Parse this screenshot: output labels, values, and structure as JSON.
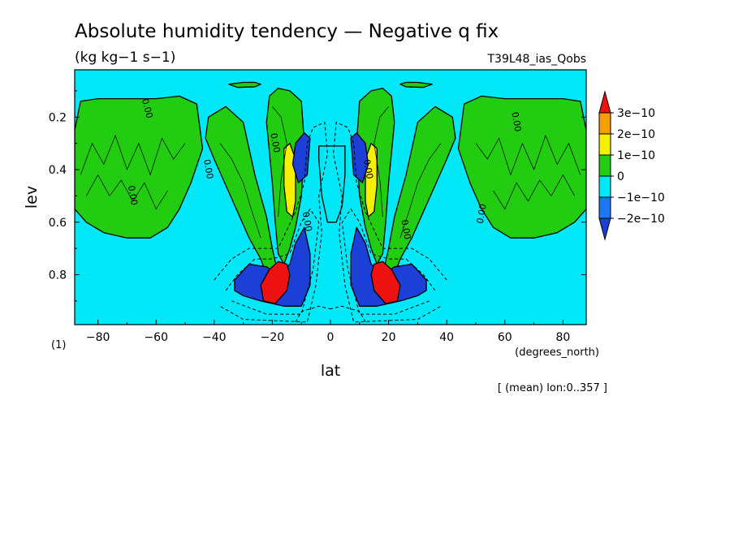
{
  "chart_data": {
    "type": "heatmap",
    "title": "Absolute humidity tendency — Negative q fix",
    "units": "(kg kg−1 s−1)",
    "run_label": "T39L48_ias_Qobs",
    "xlabel": "lat",
    "x_units": "(degrees_north)",
    "ylabel": "lev",
    "y_units": "(1)",
    "annotation": "[ (mean) lon:0..357 ]",
    "xlim": [
      -88,
      88
    ],
    "ylim": [
      0.99,
      0.02
    ],
    "x_ticks": [
      -80,
      -60,
      -40,
      -20,
      0,
      20,
      40,
      60,
      80
    ],
    "x_tick_labels": [
      "−80",
      "−60",
      "−40",
      "−20",
      "0",
      "20",
      "40",
      "60",
      "80"
    ],
    "y_ticks": [
      0.2,
      0.4,
      0.6,
      0.8
    ],
    "y_tick_labels": [
      "0.2",
      "0.4",
      "0.6",
      "0.8"
    ],
    "contour_label": "0.00",
    "colorbar": {
      "labels": [
        "3e−10",
        "2e−10",
        "1e−10",
        "0",
        "−1e−10",
        "−2e−10"
      ],
      "colors": [
        "#ee1111",
        "#f5a000",
        "#f5f000",
        "#22cc11",
        "#00e8f8",
        "#1c78f0",
        "#1c3fd8"
      ]
    },
    "regions": {
      "green": [
        {
          "hemisphere": "both",
          "points": [
            [
              -88,
              0.25
            ],
            [
              -86,
              0.14
            ],
            [
              -80,
              0.13
            ],
            [
              -70,
              0.13
            ],
            [
              -60,
              0.13
            ],
            [
              -52,
              0.12
            ],
            [
              -46,
              0.15
            ],
            [
              -44,
              0.32
            ],
            [
              -48,
              0.45
            ],
            [
              -52,
              0.55
            ],
            [
              -56,
              0.62
            ],
            [
              -62,
              0.66
            ],
            [
              -70,
              0.66
            ],
            [
              -78,
              0.64
            ],
            [
              -84,
              0.6
            ],
            [
              -88,
              0.55
            ]
          ]
        },
        {
          "hemisphere": "both",
          "points": [
            [
              -42,
              0.2
            ],
            [
              -36,
              0.16
            ],
            [
              -30,
              0.22
            ],
            [
              -26,
              0.42
            ],
            [
              -22,
              0.58
            ],
            [
              -20,
              0.7
            ],
            [
              -18,
              0.8
            ],
            [
              -22,
              0.8
            ],
            [
              -24,
              0.74
            ],
            [
              -28,
              0.66
            ],
            [
              -32,
              0.56
            ],
            [
              -36,
              0.46
            ],
            [
              -40,
              0.36
            ],
            [
              -43,
              0.28
            ]
          ]
        },
        {
          "hemisphere": "both",
          "points": [
            [
              -22,
              0.22
            ],
            [
              -21,
              0.12
            ],
            [
              -18,
              0.09
            ],
            [
              -14,
              0.1
            ],
            [
              -10,
              0.14
            ],
            [
              -9,
              0.3
            ],
            [
              -10,
              0.5
            ],
            [
              -12,
              0.62
            ],
            [
              -14,
              0.7
            ],
            [
              -16,
              0.76
            ],
            [
              -18,
              0.72
            ],
            [
              -19,
              0.6
            ],
            [
              -20,
              0.45
            ]
          ]
        },
        {
          "hemisphere": "both",
          "points": [
            [
              -35,
              0.075
            ],
            [
              -30,
              0.068
            ],
            [
              -26,
              0.068
            ],
            [
              -24,
              0.075
            ],
            [
              -26,
              0.085
            ],
            [
              -32,
              0.087
            ]
          ]
        }
      ],
      "yellow": [
        {
          "hemisphere": "both",
          "points": [
            [
              -16,
              0.32
            ],
            [
              -14,
              0.3
            ],
            [
              -12,
              0.36
            ],
            [
              -12,
              0.52
            ],
            [
              -13,
              0.58
            ],
            [
              -15,
              0.56
            ],
            [
              -16,
              0.46
            ]
          ]
        }
      ],
      "light_blue": [
        {
          "hemisphere": "north_only",
          "points": [
            [
              -4,
              0.36
            ],
            [
              -4,
              0.31
            ],
            [
              5,
              0.31
            ],
            [
              5,
              0.42
            ],
            [
              4,
              0.54
            ],
            [
              2,
              0.6
            ],
            [
              -1,
              0.6
            ],
            [
              -3,
              0.5
            ]
          ]
        }
      ],
      "dark_blue": [
        {
          "hemisphere": "both",
          "points": [
            [
              -33,
              0.82
            ],
            [
              -28,
              0.76
            ],
            [
              -22,
              0.77
            ],
            [
              -18,
              0.8
            ],
            [
              -14,
              0.76
            ],
            [
              -12,
              0.68
            ],
            [
              -9,
              0.62
            ],
            [
              -7,
              0.72
            ],
            [
              -7,
              0.84
            ],
            [
              -10,
              0.92
            ],
            [
              -16,
              0.92
            ],
            [
              -24,
              0.9
            ],
            [
              -30,
              0.88
            ],
            [
              -33,
              0.86
            ]
          ]
        },
        {
          "hemisphere": "both",
          "points": [
            [
              -12,
              0.3
            ],
            [
              -9,
              0.26
            ],
            [
              -7,
              0.28
            ],
            [
              -8,
              0.42
            ],
            [
              -11,
              0.45
            ],
            [
              -13,
              0.38
            ]
          ]
        }
      ],
      "red": [
        {
          "hemisphere": "both",
          "points": [
            [
              -23,
              0.9
            ],
            [
              -24,
              0.84
            ],
            [
              -21,
              0.78
            ],
            [
              -18,
              0.75
            ],
            [
              -15,
              0.76
            ],
            [
              -14,
              0.8
            ],
            [
              -15,
              0.86
            ],
            [
              -19,
              0.91
            ]
          ]
        }
      ]
    }
  }
}
